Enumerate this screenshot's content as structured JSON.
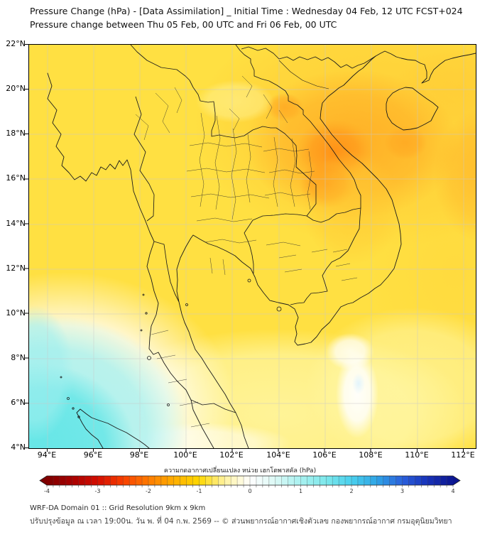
{
  "title": {
    "line1": "Pressure Change (hPa) - [Data Assimilation] _ Initial Time : Wednesday 04 Feb, 12 UTC FCST+024",
    "line2": "Pressure change between Thu 05 Feb, 00 UTC and Fri 06 Feb, 00 UTC"
  },
  "map": {
    "y_axis": {
      "labels": [
        "22°N",
        "20°N",
        "18°N",
        "16°N",
        "14°N",
        "12°N",
        "10°N",
        "8°N",
        "6°N",
        "4°N"
      ]
    },
    "x_axis": {
      "labels": [
        "94°E",
        "96°E",
        "98°E",
        "100°E",
        "102°E",
        "104°E",
        "106°E",
        "108°E",
        "110°E",
        "112°E"
      ]
    },
    "field": {
      "colors": {
        "background_yellow": "#FFE042",
        "orange_strong": "#FF8E15",
        "orange_mid": "#FFA822",
        "pale_yellow": "#FFF7A6",
        "cyan_strong": "#5FE5E6",
        "white_zero": "#FFFFFF"
      },
      "regions": [
        {
          "area": "northern Vietnam / Laos highlands (18-21N, 103-108E)",
          "pressure_change_hPa": -2
        },
        {
          "area": "most of domain (Thailand, Indochina, South China Sea)",
          "pressure_change_hPa": -1
        },
        {
          "area": "Andaman Sea / north Sumatra (southwest corner)",
          "pressure_change_hPa": 1
        },
        {
          "area": "Mekong delta coastal spot (9-10N, 106-108E)",
          "pressure_change_hPa": 0
        }
      ]
    }
  },
  "colorbar": {
    "label": "ความกดอากาศเปลี่ยนแปลง หน่วย เฮกโตพาสคัล (hPa)",
    "unit": "hPa",
    "min": -4,
    "max": 4,
    "tick_labels": [
      "-4",
      "-3",
      "-2",
      "-1",
      "0",
      "1",
      "2",
      "3",
      "4"
    ],
    "segments": 64,
    "anchors": [
      {
        "value": -4.0,
        "color": "#7E0000"
      },
      {
        "value": -3.5,
        "color": "#A80000"
      },
      {
        "value": -3.0,
        "color": "#D40D00"
      },
      {
        "value": -2.5,
        "color": "#F83E00"
      },
      {
        "value": -2.0,
        "color": "#FF7B00"
      },
      {
        "value": -1.5,
        "color": "#FFAE00"
      },
      {
        "value": -1.0,
        "color": "#FFD800"
      },
      {
        "value": -0.5,
        "color": "#FFF2A0"
      },
      {
        "value": 0.0,
        "color": "#FFFFFF"
      },
      {
        "value": 0.5,
        "color": "#DBF9F6"
      },
      {
        "value": 1.0,
        "color": "#A8F1F0"
      },
      {
        "value": 1.5,
        "color": "#7CE8EB"
      },
      {
        "value": 2.0,
        "color": "#49D0EE"
      },
      {
        "value": 2.5,
        "color": "#2FA4E6"
      },
      {
        "value": 3.0,
        "color": "#2A60DC"
      },
      {
        "value": 3.5,
        "color": "#1731B8"
      },
      {
        "value": 4.0,
        "color": "#0B1590"
      }
    ]
  },
  "footer": {
    "line1": "WRF-DA Domain 01 :: Grid Resolution 9km x 9km",
    "line2": "ปรับปรุงข้อมูล ณ เวลา 19:00น. วัน พ. ที่ 04 ก.พ. 2569 -- © ส่วนพยากรณ์อากาศเชิงตัวเลข กองพยากรณ์อากาศ กรมอุตุนิยมวิทยา"
  }
}
